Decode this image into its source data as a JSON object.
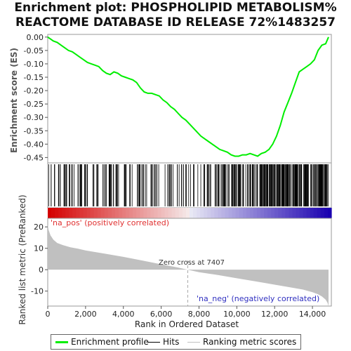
{
  "title": {
    "line1": "Enrichment plot: PHOSPHOLIPID METABOLISM%",
    "line2": "REACTOME DATABASE ID RELEASE 72%1483257"
  },
  "colors": {
    "es_line": "#00ee00",
    "hits": "#000000",
    "metric_fill": "#c0c0c0",
    "pos_label": "#e03030",
    "neg_label": "#3030c0",
    "heat_pos": "#d40000",
    "heat_neg": "#1a00b0"
  },
  "legend": {
    "es": "Enrichment profile",
    "hits": "Hits",
    "metric": "Ranking metric scores"
  },
  "chart_data": [
    {
      "type": "line",
      "ylabel": "Enrichment score (ES)",
      "xlim": [
        0,
        15000
      ],
      "ylim": [
        -0.47,
        0.01
      ],
      "yticks": [
        0.0,
        -0.05,
        -0.1,
        -0.15,
        -0.2,
        -0.25,
        -0.3,
        -0.35,
        -0.4,
        -0.45
      ],
      "ytick_labels": [
        "0.00",
        "-0.05",
        "-0.10",
        "-0.15",
        "-0.20",
        "-0.25",
        "-0.30",
        "-0.35",
        "-0.40",
        "-0.45"
      ],
      "grid": false,
      "series": [
        {
          "x": [
            0,
            300,
            500,
            700,
            900,
            1100,
            1300,
            1500,
            1700,
            1900,
            2100,
            2300,
            2500,
            2700,
            2900,
            3100,
            3300,
            3500,
            3700,
            3900,
            4100,
            4300,
            4500,
            4700,
            4900,
            5100,
            5300,
            5500,
            5700,
            5900,
            6100,
            6300,
            6500,
            6700,
            6900,
            7100,
            7300,
            7500,
            7700,
            7900,
            8100,
            8300,
            8500,
            8700,
            8900,
            9100,
            9300,
            9500,
            9700,
            9900,
            10100,
            10300,
            10500,
            10700,
            10900,
            11100,
            11300,
            11500,
            11700,
            11900,
            12100,
            12300,
            12500,
            12700,
            12900,
            13100,
            13300,
            13500,
            13700,
            13900,
            14100,
            14300,
            14500,
            14700,
            14850
          ],
          "y": [
            0.0,
            -0.015,
            -0.02,
            -0.03,
            -0.04,
            -0.05,
            -0.055,
            -0.065,
            -0.075,
            -0.085,
            -0.095,
            -0.1,
            -0.105,
            -0.11,
            -0.125,
            -0.135,
            -0.14,
            -0.13,
            -0.135,
            -0.145,
            -0.15,
            -0.155,
            -0.16,
            -0.17,
            -0.19,
            -0.205,
            -0.21,
            -0.21,
            -0.215,
            -0.22,
            -0.235,
            -0.245,
            -0.26,
            -0.27,
            -0.285,
            -0.3,
            -0.31,
            -0.325,
            -0.34,
            -0.355,
            -0.37,
            -0.38,
            -0.39,
            -0.4,
            -0.41,
            -0.42,
            -0.425,
            -0.43,
            -0.44,
            -0.445,
            -0.445,
            -0.44,
            -0.44,
            -0.435,
            -0.44,
            -0.445,
            -0.435,
            -0.43,
            -0.42,
            -0.4,
            -0.37,
            -0.33,
            -0.28,
            -0.245,
            -0.21,
            -0.17,
            -0.13,
            -0.12,
            -0.11,
            -0.1,
            -0.085,
            -0.05,
            -0.03,
            -0.025,
            0.0
          ]
        }
      ]
    },
    {
      "type": "area",
      "ylabel": "Ranked list metric (PreRanked)",
      "xlabel": "Rank in Ordered Dataset",
      "xlim": [
        0,
        15000
      ],
      "ylim": [
        -17,
        24
      ],
      "xticks": [
        0,
        2000,
        4000,
        6000,
        8000,
        10000,
        12000,
        14000
      ],
      "xtick_labels": [
        "0",
        "2,000",
        "4,000",
        "6,000",
        "8,000",
        "10,000",
        "12,000",
        "14,000"
      ],
      "yticks": [
        20,
        10,
        0,
        -10
      ],
      "ytick_labels": [
        "20",
        "10",
        "0",
        "-10"
      ],
      "series": [
        {
          "x": [
            0,
            50,
            150,
            300,
            500,
            800,
            1200,
            1600,
            2000,
            3000,
            4000,
            5000,
            6000,
            7000,
            7407,
            8000,
            9000,
            10000,
            11000,
            12000,
            13000,
            13500,
            14000,
            14300,
            14500,
            14700,
            14800,
            14850
          ],
          "y": [
            21,
            18.5,
            16,
            14,
            12.5,
            11.5,
            10.5,
            9.8,
            9,
            7.5,
            6,
            4.3,
            2.5,
            0.8,
            0,
            -1.2,
            -2.5,
            -4,
            -5.5,
            -7,
            -8.5,
            -9.3,
            -10.5,
            -11.5,
            -12.5,
            -14,
            -15.5,
            -17
          ]
        }
      ],
      "annotations": {
        "pos": "'na_pos' (positively correlated)",
        "neg": "'na_neg' (negatively correlated)",
        "zero_cross": "Zero cross at 7407",
        "zero_cross_rank": 7407
      }
    }
  ]
}
